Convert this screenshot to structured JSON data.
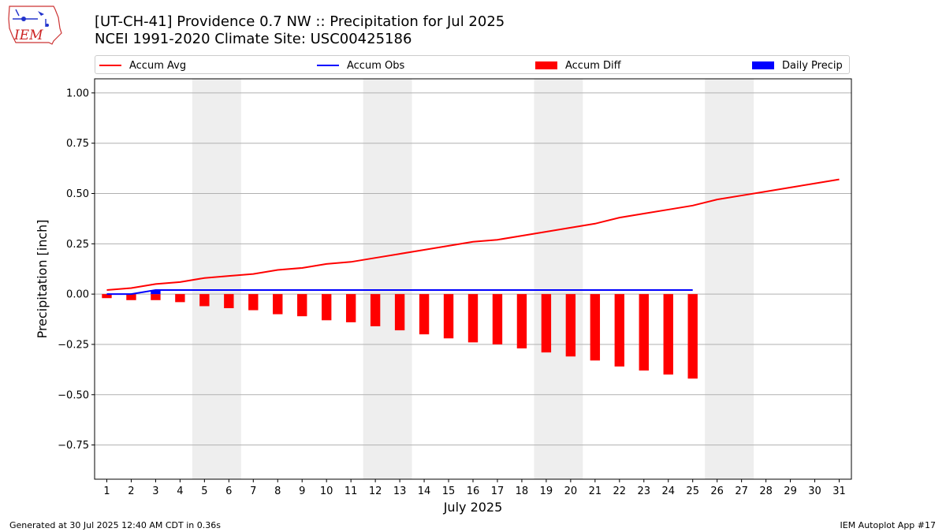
{
  "header": {
    "title_line1": "[UT-CH-41] Providence 0.7 NW :: Precipitation for Jul 2025",
    "title_line2": "NCEI 1991-2020 Climate Site: USC00425186"
  },
  "logo": {
    "text": "IEM"
  },
  "legend": {
    "items": [
      {
        "label": "Accum Avg",
        "color": "#ff0000",
        "kind": "line"
      },
      {
        "label": "Accum Obs",
        "color": "#0000ff",
        "kind": "line"
      },
      {
        "label": "Accum Diff",
        "color": "#ff0000",
        "kind": "bar"
      },
      {
        "label": "Daily Precip",
        "color": "#0000ff",
        "kind": "bar"
      }
    ]
  },
  "footer": {
    "left": "Generated at 30 Jul 2025 12:40 AM CDT in 0.36s",
    "right": "IEM Autoplot App #17"
  },
  "chart_data": {
    "type": "bar",
    "xlabel": "July 2025",
    "ylabel": "Precipitation [inch]",
    "x": [
      1,
      2,
      3,
      4,
      5,
      6,
      7,
      8,
      9,
      10,
      11,
      12,
      13,
      14,
      15,
      16,
      17,
      18,
      19,
      20,
      21,
      22,
      23,
      24,
      25,
      26,
      27,
      28,
      29,
      30,
      31
    ],
    "xlim": [
      0.5,
      31.5
    ],
    "ylim": [
      -0.92,
      1.07
    ],
    "yticks": [
      -0.75,
      -0.5,
      -0.25,
      0.0,
      0.25,
      0.5,
      0.75,
      1.0
    ],
    "ytick_labels": [
      "−0.75",
      "−0.50",
      "−0.25",
      "0.00",
      "0.25",
      "0.50",
      "0.75",
      "1.00"
    ],
    "grid": true,
    "legend_position": "top",
    "weekend_shading": [
      [
        4.5,
        6.5
      ],
      [
        11.5,
        13.5
      ],
      [
        18.5,
        20.5
      ],
      [
        25.5,
        27.5
      ]
    ],
    "series": [
      {
        "name": "Accum Avg",
        "kind": "line",
        "color": "#ff0000",
        "x": [
          1,
          2,
          3,
          4,
          5,
          6,
          7,
          8,
          9,
          10,
          11,
          12,
          13,
          14,
          15,
          16,
          17,
          18,
          19,
          20,
          21,
          22,
          23,
          24,
          25,
          26,
          27,
          28,
          29,
          30,
          31
        ],
        "values": [
          0.02,
          0.03,
          0.05,
          0.06,
          0.08,
          0.09,
          0.1,
          0.12,
          0.13,
          0.15,
          0.16,
          0.18,
          0.2,
          0.22,
          0.24,
          0.26,
          0.27,
          0.29,
          0.31,
          0.33,
          0.35,
          0.38,
          0.4,
          0.42,
          0.44,
          0.47,
          0.49,
          0.51,
          0.53,
          0.55,
          0.57
        ]
      },
      {
        "name": "Accum Obs",
        "kind": "line",
        "color": "#0000ff",
        "x": [
          1,
          2,
          3,
          4,
          5,
          6,
          7,
          8,
          9,
          10,
          11,
          12,
          13,
          14,
          15,
          16,
          17,
          18,
          19,
          20,
          21,
          22,
          23,
          24,
          25
        ],
        "values": [
          0.0,
          0.0,
          0.02,
          0.02,
          0.02,
          0.02,
          0.02,
          0.02,
          0.02,
          0.02,
          0.02,
          0.02,
          0.02,
          0.02,
          0.02,
          0.02,
          0.02,
          0.02,
          0.02,
          0.02,
          0.02,
          0.02,
          0.02,
          0.02,
          0.02
        ]
      },
      {
        "name": "Accum Diff",
        "kind": "bar",
        "color": "#ff0000",
        "x": [
          1,
          2,
          3,
          4,
          5,
          6,
          7,
          8,
          9,
          10,
          11,
          12,
          13,
          14,
          15,
          16,
          17,
          18,
          19,
          20,
          21,
          22,
          23,
          24,
          25
        ],
        "values": [
          -0.02,
          -0.03,
          -0.03,
          -0.04,
          -0.06,
          -0.07,
          -0.08,
          -0.1,
          -0.11,
          -0.13,
          -0.14,
          -0.16,
          -0.18,
          -0.2,
          -0.22,
          -0.24,
          -0.25,
          -0.27,
          -0.29,
          -0.31,
          -0.33,
          -0.36,
          -0.38,
          -0.4,
          -0.42
        ]
      },
      {
        "name": "Daily Precip",
        "kind": "bar",
        "color": "#0000ff",
        "x": [
          3
        ],
        "values": [
          0.02
        ]
      }
    ]
  }
}
